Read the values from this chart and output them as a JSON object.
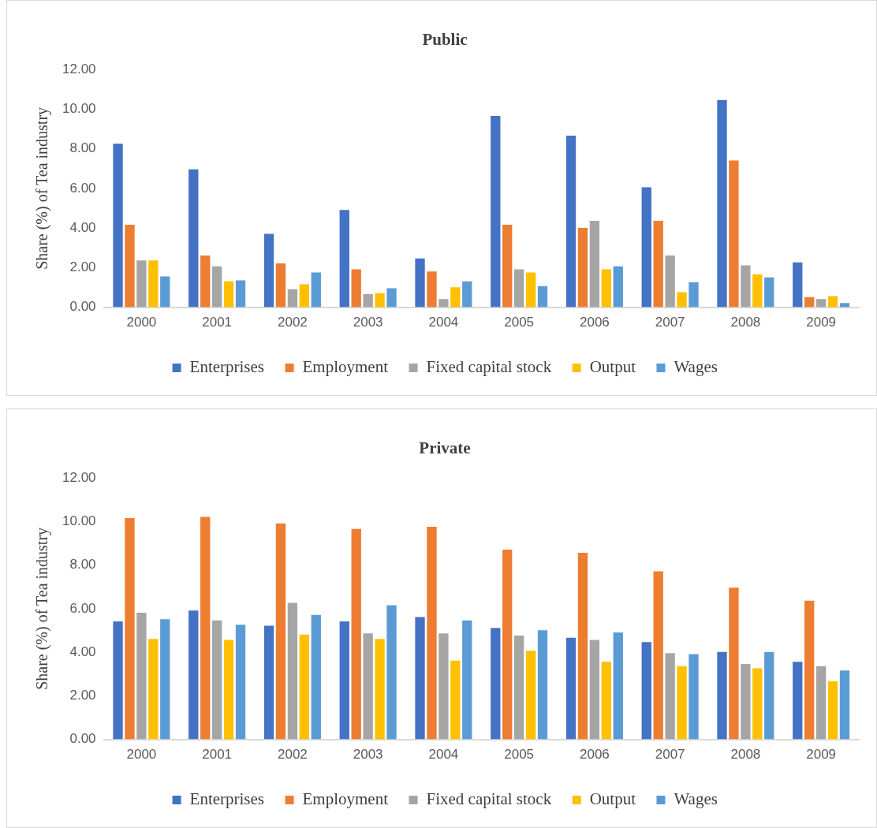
{
  "chart_data": [
    {
      "type": "bar",
      "title": "Public",
      "ylabel": "Share (%) of Tea industry",
      "categories": [
        "2000",
        "2001",
        "2002",
        "2003",
        "2004",
        "2005",
        "2006",
        "2007",
        "2008",
        "2009"
      ],
      "series": [
        {
          "name": "Enterprises",
          "color": "#4472c4",
          "values": [
            8.3,
            7.0,
            3.75,
            4.95,
            2.5,
            9.7,
            8.7,
            6.1,
            10.5,
            2.3
          ]
        },
        {
          "name": "Employment",
          "color": "#ed7d31",
          "values": [
            4.2,
            2.65,
            2.25,
            1.95,
            1.85,
            4.2,
            4.05,
            4.4,
            7.45,
            0.55
          ]
        },
        {
          "name": "Fixed capital stock",
          "color": "#a5a5a5",
          "values": [
            2.4,
            2.1,
            0.95,
            0.7,
            0.45,
            1.95,
            4.4,
            2.65,
            2.15,
            0.45
          ]
        },
        {
          "name": "Output",
          "color": "#ffc000",
          "values": [
            2.4,
            1.35,
            1.2,
            0.75,
            1.05,
            1.8,
            1.95,
            0.8,
            1.7,
            0.6
          ]
        },
        {
          "name": "Wages",
          "color": "#5b9bd5",
          "values": [
            1.6,
            1.4,
            1.8,
            1.0,
            1.35,
            1.1,
            2.1,
            1.3,
            1.55,
            0.25
          ]
        }
      ],
      "ylim": [
        0,
        12
      ],
      "yticks": [
        {
          "value": 0,
          "label": "0.00"
        },
        {
          "value": 2,
          "label": "2.00"
        },
        {
          "value": 4,
          "label": "4.00"
        },
        {
          "value": 6,
          "label": "6.00"
        },
        {
          "value": 8,
          "label": "8.00"
        },
        {
          "value": 10,
          "label": "10.00"
        },
        {
          "value": 12,
          "label": "12.00"
        }
      ],
      "grid": false,
      "legend": "bottom"
    },
    {
      "type": "bar",
      "title": "Private",
      "ylabel": "Share (%) of Tea industry",
      "categories": [
        "2000",
        "2001",
        "2002",
        "2003",
        "2004",
        "2005",
        "2006",
        "2007",
        "2008",
        "2009"
      ],
      "series": [
        {
          "name": "Enterprises",
          "color": "#4472c4",
          "values": [
            5.45,
            5.95,
            5.25,
            5.45,
            5.65,
            5.15,
            4.7,
            4.5,
            4.05,
            3.6
          ]
        },
        {
          "name": "Employment",
          "color": "#ed7d31",
          "values": [
            10.2,
            10.25,
            9.95,
            9.7,
            9.8,
            8.75,
            8.6,
            7.75,
            7.0,
            6.4
          ]
        },
        {
          "name": "Fixed capital stock",
          "color": "#a5a5a5",
          "values": [
            5.85,
            5.5,
            6.3,
            4.9,
            4.9,
            4.8,
            4.6,
            4.0,
            3.5,
            3.4
          ]
        },
        {
          "name": "Output",
          "color": "#ffc000",
          "values": [
            4.65,
            4.6,
            4.85,
            4.65,
            3.65,
            4.1,
            3.6,
            3.4,
            3.3,
            2.7
          ]
        },
        {
          "name": "Wages",
          "color": "#5b9bd5",
          "values": [
            5.55,
            5.3,
            5.75,
            6.2,
            5.5,
            5.05,
            4.95,
            3.95,
            4.05,
            3.2
          ]
        }
      ],
      "ylim": [
        0,
        12
      ],
      "yticks": [
        {
          "value": 0,
          "label": "0.00"
        },
        {
          "value": 2,
          "label": "2.00"
        },
        {
          "value": 4,
          "label": "4.00"
        },
        {
          "value": 6,
          "label": "6.00"
        },
        {
          "value": 8,
          "label": "8.00"
        },
        {
          "value": 10,
          "label": "10.00"
        },
        {
          "value": 12,
          "label": "12.00"
        }
      ],
      "grid": false,
      "legend": "bottom"
    }
  ]
}
